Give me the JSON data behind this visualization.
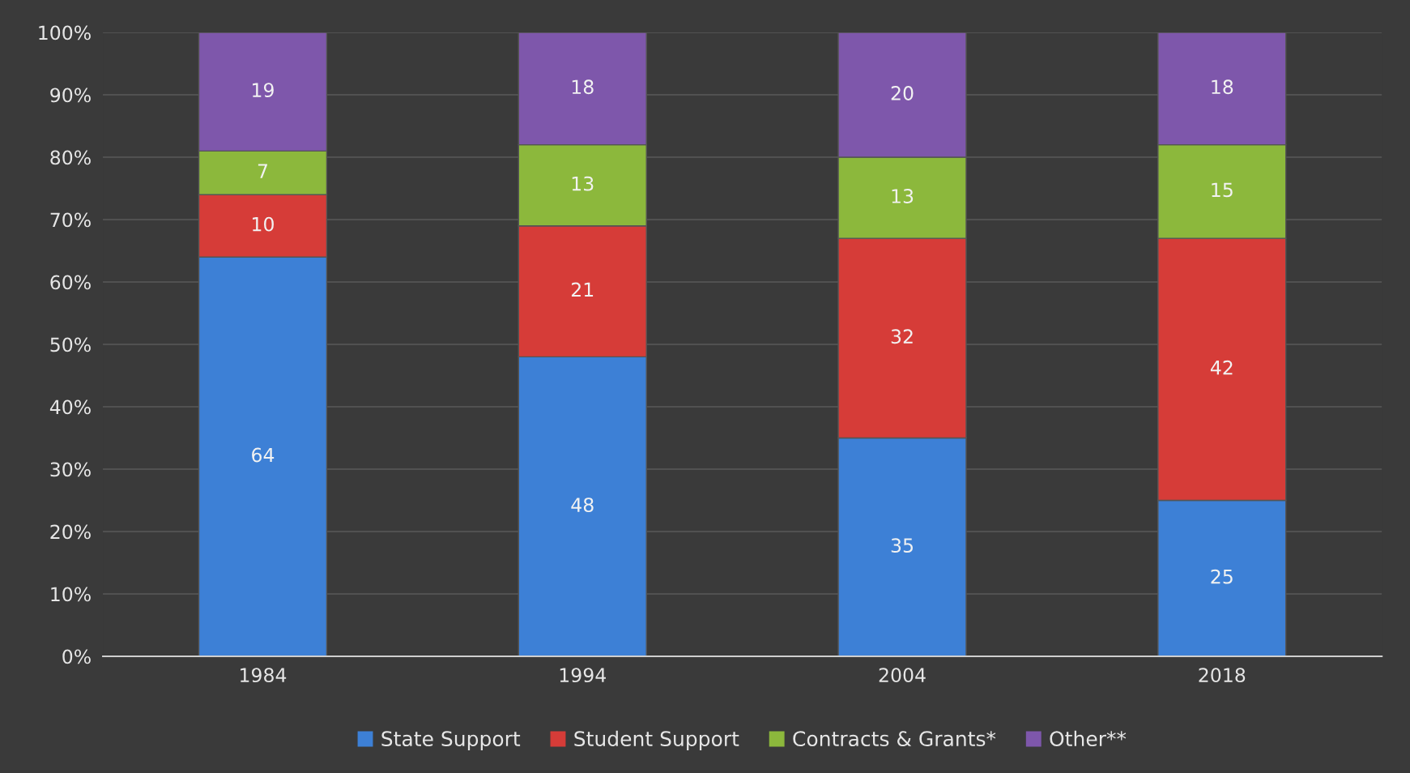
{
  "chart_data": {
    "type": "bar",
    "stacked": true,
    "categories": [
      "1984",
      "1994",
      "2004",
      "2018"
    ],
    "series": [
      {
        "name": "State Support",
        "color": "#3d80d6",
        "values": [
          64,
          48,
          35,
          25
        ]
      },
      {
        "name": "Student Support",
        "color": "#d63c38",
        "values": [
          10,
          21,
          32,
          42
        ]
      },
      {
        "name": "Contracts & Grants*",
        "color": "#8cb83c",
        "values": [
          7,
          13,
          13,
          15
        ]
      },
      {
        "name": "Other**",
        "color": "#7e57ab",
        "values": [
          19,
          18,
          20,
          18
        ]
      }
    ],
    "ylim": [
      0,
      100
    ],
    "yticks": [
      {
        "value": 0,
        "label": "0%"
      },
      {
        "value": 10,
        "label": "10%"
      },
      {
        "value": 20,
        "label": "20%"
      },
      {
        "value": 30,
        "label": "30%"
      },
      {
        "value": 40,
        "label": "40%"
      },
      {
        "value": 50,
        "label": "50%"
      },
      {
        "value": 60,
        "label": "60%"
      },
      {
        "value": 70,
        "label": "70%"
      },
      {
        "value": 80,
        "label": "80%"
      },
      {
        "value": 90,
        "label": "90%"
      },
      {
        "value": 100,
        "label": "100%"
      }
    ],
    "grid": "y",
    "legend": "bottom",
    "data_labels": true
  }
}
